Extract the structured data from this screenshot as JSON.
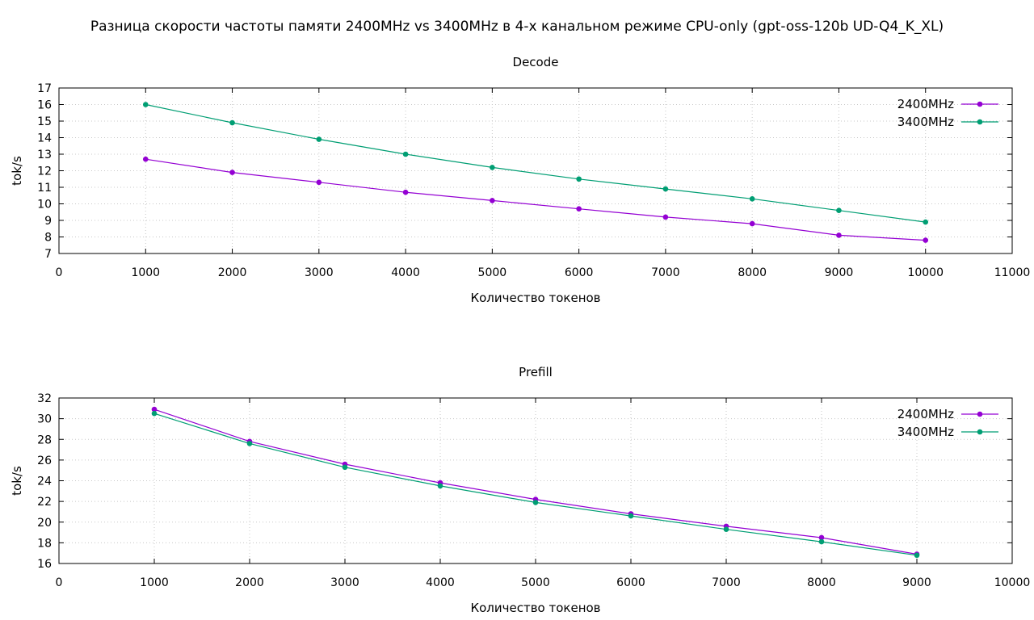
{
  "figure_title": "Разница скорости частоты памяти 2400MHz vs 3400MHz в 4-х канальном режиме CPU-only (gpt-oss-120b UD-Q4_K_XL)",
  "colors": {
    "2400MHz": "#9400d3",
    "3400MHz": "#009e73",
    "grid": "#c8c8c8",
    "axis": "#000000"
  },
  "chart_data": [
    {
      "type": "line",
      "title": "Decode",
      "xlabel": "Количество токенов",
      "ylabel": "tok/s",
      "xlim": [
        0,
        11000
      ],
      "ylim": [
        7,
        17
      ],
      "xticks": [
        0,
        1000,
        2000,
        3000,
        4000,
        5000,
        6000,
        7000,
        8000,
        9000,
        10000,
        11000
      ],
      "yticks": [
        7,
        8,
        9,
        10,
        11,
        12,
        13,
        14,
        15,
        16,
        17
      ],
      "grid": true,
      "legend": "top-right",
      "x": [
        1000,
        2000,
        3000,
        4000,
        5000,
        6000,
        7000,
        8000,
        9000,
        10000
      ],
      "series": [
        {
          "name": "2400MHz",
          "color": "#9400d3",
          "values": [
            12.7,
            11.9,
            11.3,
            10.7,
            10.2,
            9.7,
            9.2,
            8.8,
            8.1,
            7.8
          ]
        },
        {
          "name": "3400MHz",
          "color": "#009e73",
          "values": [
            16.0,
            14.9,
            13.9,
            13.0,
            12.2,
            11.5,
            10.9,
            10.3,
            9.6,
            8.9
          ]
        }
      ]
    },
    {
      "type": "line",
      "title": "Prefill",
      "xlabel": "Количество токенов",
      "ylabel": "tok/s",
      "xlim": [
        0,
        10000
      ],
      "ylim": [
        16,
        32
      ],
      "xticks": [
        0,
        1000,
        2000,
        3000,
        4000,
        5000,
        6000,
        7000,
        8000,
        9000,
        10000
      ],
      "yticks": [
        16,
        18,
        20,
        22,
        24,
        26,
        28,
        30,
        32
      ],
      "grid": true,
      "legend": "top-right",
      "x": [
        1000,
        2000,
        3000,
        4000,
        5000,
        6000,
        7000,
        8000,
        9000
      ],
      "series": [
        {
          "name": "2400MHz",
          "color": "#9400d3",
          "values": [
            30.9,
            27.8,
            25.6,
            23.8,
            22.2,
            20.8,
            19.6,
            18.5,
            16.9
          ]
        },
        {
          "name": "3400MHz",
          "color": "#009e73",
          "values": [
            30.5,
            27.6,
            25.3,
            23.5,
            21.9,
            20.6,
            19.3,
            18.1,
            16.8
          ]
        }
      ]
    }
  ]
}
